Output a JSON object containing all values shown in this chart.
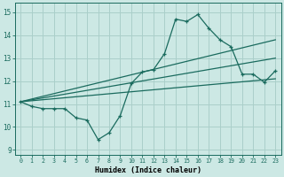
{
  "xlabel": "Humidex (Indice chaleur)",
  "bg_color": "#cce8e4",
  "grid_color": "#aacfca",
  "line_color": "#1a6b5e",
  "xlim": [
    -0.5,
    23.5
  ],
  "ylim": [
    8.8,
    15.4
  ],
  "yticks": [
    9,
    10,
    11,
    12,
    13,
    14,
    15
  ],
  "xticks": [
    0,
    1,
    2,
    3,
    4,
    5,
    6,
    7,
    8,
    9,
    10,
    11,
    12,
    13,
    14,
    15,
    16,
    17,
    18,
    19,
    20,
    21,
    22,
    23
  ],
  "line1_x": [
    0,
    1,
    2,
    3,
    4,
    5,
    6,
    7,
    8,
    9,
    10,
    11,
    12,
    13,
    14,
    15,
    16,
    17,
    18,
    19,
    20,
    21,
    22,
    23
  ],
  "line1_y": [
    11.1,
    10.9,
    10.8,
    10.8,
    10.8,
    10.4,
    10.3,
    9.45,
    9.75,
    10.5,
    11.9,
    12.4,
    12.5,
    13.2,
    14.7,
    14.6,
    14.9,
    14.3,
    13.8,
    13.5,
    12.3,
    12.3,
    11.95,
    12.45
  ],
  "line2_x": [
    0,
    23
  ],
  "line2_y": [
    11.1,
    13.8
  ],
  "line3_x": [
    0,
    23
  ],
  "line3_y": [
    11.1,
    13.0
  ],
  "line4_x": [
    0,
    23
  ],
  "line4_y": [
    11.1,
    12.1
  ]
}
